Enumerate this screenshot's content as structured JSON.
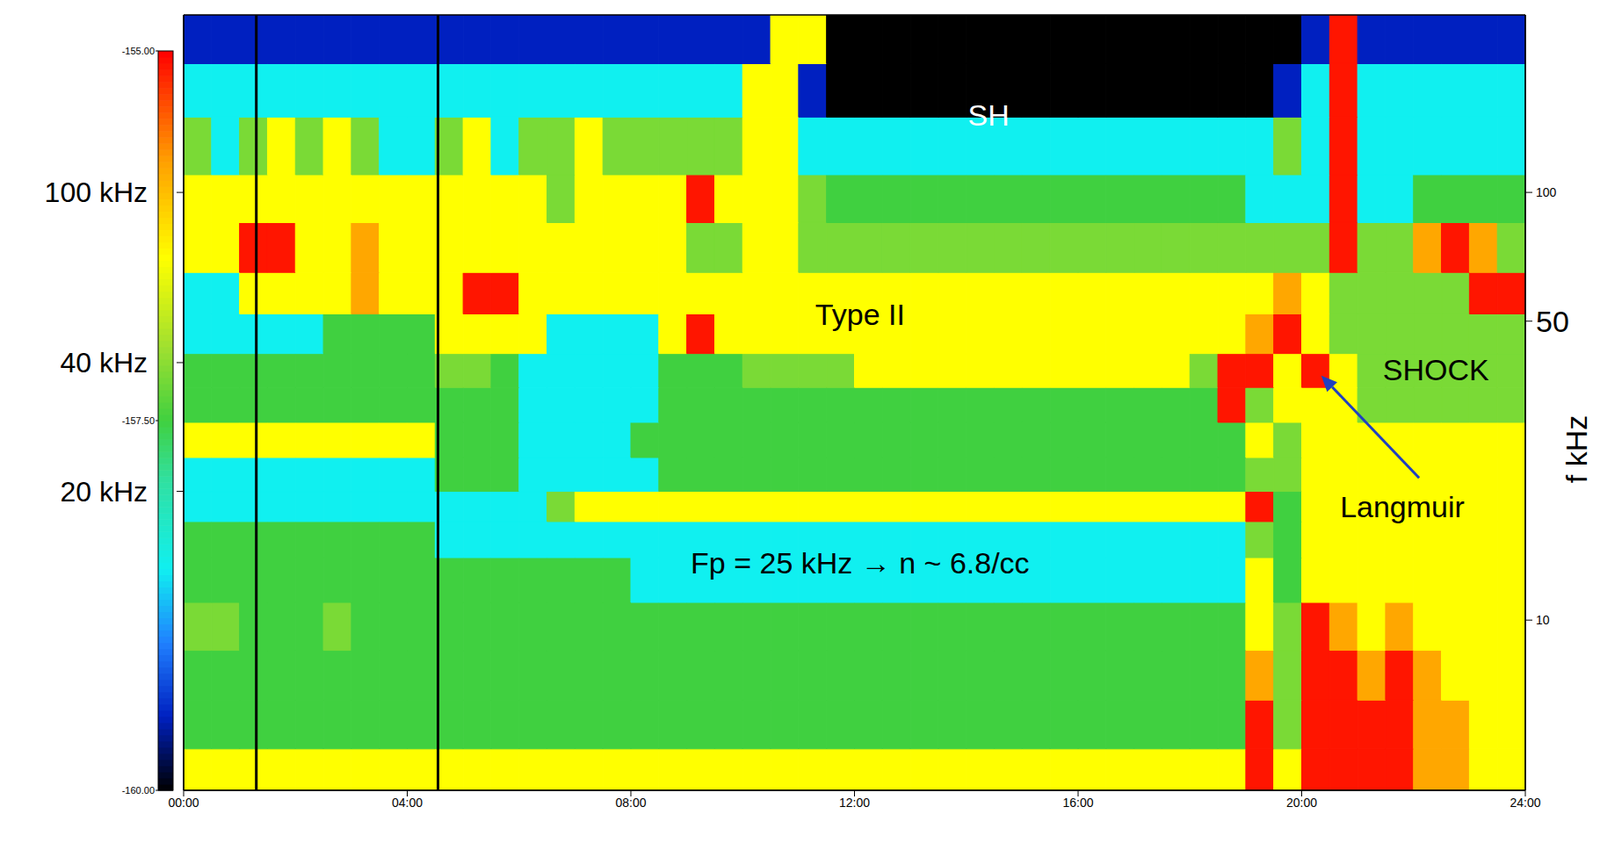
{
  "chart_data": {
    "type": "heatmap",
    "xlim": [
      0,
      24
    ],
    "xticks": [
      {
        "value": 0,
        "label": "00:00"
      },
      {
        "value": 4,
        "label": "04:00"
      },
      {
        "value": 8,
        "label": "08:00"
      },
      {
        "value": 12,
        "label": "12:00"
      },
      {
        "value": 16,
        "label": "16:00"
      },
      {
        "value": 20,
        "label": "20:00"
      },
      {
        "value": 24,
        "label": "24:00"
      }
    ],
    "ylim": [
      4,
      260
    ],
    "log": "y",
    "yticks": [
      {
        "value": 20,
        "label": "20 kHz"
      },
      {
        "value": 40,
        "label": "40 kHz"
      },
      {
        "value": 100,
        "label": "100 kHz"
      }
    ],
    "y2lim": [
      4,
      260
    ],
    "y2ticks": [
      10,
      50,
      100
    ],
    "y2_label": "f kHz",
    "t_edges": [
      0,
      0.5,
      1,
      1.5,
      2,
      2.5,
      3,
      3.5,
      4,
      4.5,
      5,
      5.5,
      6,
      6.5,
      7,
      7.5,
      8,
      8.5,
      9,
      9.5,
      10,
      10.5,
      11,
      11.5,
      12,
      12.5,
      13,
      13.5,
      14,
      14.5,
      15,
      15.5,
      16,
      16.5,
      17,
      17.5,
      18,
      18.5,
      19,
      19.5,
      20,
      20.5,
      21,
      21.5,
      22,
      22.5,
      23,
      23.5,
      24
    ],
    "f_edges": [
      4,
      5,
      6.5,
      8.5,
      11,
      14,
      17,
      20,
      24,
      29,
      35,
      42,
      52,
      65,
      85,
      110,
      150,
      200,
      260
    ],
    "cells": [
      [
        -156.4,
        -156.4,
        -156.4,
        -156.4,
        -156.4,
        -156.4,
        -156.4,
        -156.4,
        -156.4,
        -156.4,
        -156.4,
        -156.4,
        -156.4,
        -156.4,
        -156.4,
        -156.4,
        -156.4,
        -156.4,
        -156.4,
        -156.4,
        -156.4,
        -156.4,
        -156.4,
        -156.4,
        -156.4,
        -156.4,
        -156.4,
        -156.4,
        -156.4,
        -156.4,
        -156.4,
        -156.4,
        -156.4,
        -156.4,
        -156.4,
        -156.4,
        -156.4,
        -156.4,
        -155.1,
        -156.4,
        -155.1,
        -155.1,
        -155.1,
        -155.1,
        -155.8,
        -155.8,
        -156.4,
        -156.4
      ],
      [
        -157.5,
        -157.5,
        -157.5,
        -157.5,
        -157.5,
        -157.5,
        -157.5,
        -157.5,
        -157.5,
        -157.5,
        -157.5,
        -157.5,
        -157.5,
        -157.5,
        -157.5,
        -157.5,
        -157.5,
        -157.5,
        -157.5,
        -157.5,
        -157.5,
        -157.5,
        -157.5,
        -157.5,
        -157.5,
        -157.5,
        -157.5,
        -157.5,
        -157.5,
        -157.5,
        -157.5,
        -157.5,
        -157.5,
        -157.5,
        -157.5,
        -157.5,
        -157.5,
        -157.5,
        -155.1,
        -157.2,
        -155.1,
        -155.1,
        -155.1,
        -155.1,
        -155.8,
        -155.8,
        -156.4,
        -156.4
      ],
      [
        -157.5,
        -157.5,
        -157.5,
        -157.5,
        -157.5,
        -157.5,
        -157.5,
        -157.5,
        -157.5,
        -157.5,
        -157.5,
        -157.5,
        -157.5,
        -157.5,
        -157.5,
        -157.5,
        -157.5,
        -157.5,
        -157.5,
        -157.5,
        -157.5,
        -157.5,
        -157.5,
        -157.5,
        -157.5,
        -157.5,
        -157.5,
        -157.5,
        -157.5,
        -157.5,
        -157.5,
        -157.5,
        -157.5,
        -157.5,
        -157.5,
        -157.5,
        -157.5,
        -157.5,
        -155.8,
        -157.2,
        -155.1,
        -155.1,
        -155.8,
        -155.1,
        -155.8,
        -156.4,
        -156.4,
        -156.4
      ],
      [
        -157.2,
        -157.2,
        -157.5,
        -157.5,
        -157.5,
        -157.2,
        -157.5,
        -157.5,
        -157.5,
        -157.5,
        -157.5,
        -157.5,
        -157.5,
        -157.5,
        -157.5,
        -157.5,
        -157.5,
        -157.5,
        -157.5,
        -157.5,
        -157.5,
        -157.5,
        -157.5,
        -157.5,
        -157.5,
        -157.5,
        -157.5,
        -157.5,
        -157.5,
        -157.5,
        -157.5,
        -157.5,
        -157.5,
        -157.5,
        -157.5,
        -157.5,
        -157.5,
        -157.5,
        -156.4,
        -157.2,
        -155.1,
        -155.8,
        -156.4,
        -155.8,
        -156.4,
        -156.4,
        -156.4,
        -156.4
      ],
      [
        -157.5,
        -157.5,
        -157.5,
        -157.5,
        -157.5,
        -157.5,
        -157.5,
        -157.5,
        -157.5,
        -157.5,
        -157.5,
        -157.5,
        -157.5,
        -157.5,
        -157.5,
        -157.5,
        -158.5,
        -158.5,
        -158.5,
        -158.5,
        -158.5,
        -158.5,
        -158.5,
        -158.5,
        -158.5,
        -158.5,
        -158.5,
        -158.5,
        -158.5,
        -158.5,
        -158.5,
        -158.5,
        -158.5,
        -158.5,
        -158.5,
        -158.5,
        -158.5,
        -158.5,
        -156.4,
        -157.5,
        -156.4,
        -156.4,
        -156.4,
        -156.4,
        -156.4,
        -156.4,
        -156.4,
        -156.4
      ],
      [
        -157.5,
        -157.5,
        -157.5,
        -157.5,
        -157.5,
        -157.5,
        -157.5,
        -157.5,
        -157.5,
        -158.5,
        -158.5,
        -158.5,
        -158.5,
        -158.5,
        -158.5,
        -158.5,
        -158.5,
        -158.5,
        -158.5,
        -158.5,
        -158.5,
        -158.5,
        -158.5,
        -158.5,
        -158.5,
        -158.5,
        -158.5,
        -158.5,
        -158.5,
        -158.5,
        -158.5,
        -158.5,
        -158.5,
        -158.5,
        -158.5,
        -158.5,
        -158.5,
        -158.5,
        -157.2,
        -157.5,
        -156.4,
        -156.4,
        -156.4,
        -156.4,
        -156.4,
        -156.4,
        -156.4,
        -156.4
      ],
      [
        -158.5,
        -158.5,
        -158.5,
        -158.5,
        -158.5,
        -158.5,
        -158.5,
        -158.5,
        -158.5,
        -158.5,
        -158.5,
        -158.5,
        -158.5,
        -157.2,
        -156.4,
        -156.4,
        -156.4,
        -156.4,
        -156.4,
        -156.4,
        -156.4,
        -156.4,
        -156.4,
        -156.4,
        -156.4,
        -156.4,
        -156.4,
        -156.4,
        -156.4,
        -156.4,
        -156.4,
        -156.4,
        -156.4,
        -156.4,
        -156.4,
        -156.4,
        -156.4,
        -156.4,
        -155.1,
        -157.5,
        -156.4,
        -156.4,
        -156.4,
        -156.4,
        -156.4,
        -156.4,
        -156.4,
        -156.4
      ],
      [
        -158.5,
        -158.5,
        -158.5,
        -158.5,
        -158.5,
        -158.5,
        -158.5,
        -158.5,
        -158.5,
        -157.5,
        -157.5,
        -157.5,
        -158.5,
        -158.5,
        -158.5,
        -158.5,
        -158.5,
        -157.5,
        -157.5,
        -157.5,
        -157.5,
        -157.5,
        -157.5,
        -157.5,
        -157.5,
        -157.5,
        -157.5,
        -157.5,
        -157.5,
        -157.5,
        -157.5,
        -157.5,
        -157.5,
        -157.5,
        -157.5,
        -157.5,
        -157.5,
        -157.5,
        -157.2,
        -157.2,
        -156.4,
        -156.4,
        -156.4,
        -156.4,
        -156.4,
        -156.4,
        -156.4,
        -156.4
      ],
      [
        -156.4,
        -156.4,
        -156.4,
        -156.4,
        -156.4,
        -156.4,
        -156.4,
        -156.4,
        -156.4,
        -157.5,
        -157.5,
        -157.5,
        -158.5,
        -158.5,
        -158.5,
        -158.5,
        -157.5,
        -157.5,
        -157.5,
        -157.5,
        -157.5,
        -157.5,
        -157.5,
        -157.5,
        -157.5,
        -157.5,
        -157.5,
        -157.5,
        -157.5,
        -157.5,
        -157.5,
        -157.5,
        -157.5,
        -157.5,
        -157.5,
        -157.5,
        -157.5,
        -157.5,
        -156.4,
        -157.2,
        -156.4,
        -156.4,
        -156.4,
        -156.4,
        -156.4,
        -156.4,
        -156.4,
        -156.4
      ],
      [
        -157.5,
        -157.5,
        -157.5,
        -157.5,
        -157.5,
        -157.5,
        -157.5,
        -157.5,
        -157.5,
        -157.5,
        -157.5,
        -157.5,
        -158.5,
        -158.5,
        -158.5,
        -158.5,
        -158.5,
        -157.5,
        -157.5,
        -157.5,
        -157.5,
        -157.5,
        -157.5,
        -157.5,
        -157.5,
        -157.5,
        -157.5,
        -157.5,
        -157.5,
        -157.5,
        -157.5,
        -157.5,
        -157.5,
        -157.5,
        -157.5,
        -157.5,
        -157.5,
        -155.1,
        -157.2,
        -156.4,
        -156.4,
        -156.4,
        -157.2,
        -157.2,
        -157.2,
        -157.2,
        -157.2,
        -157.2
      ],
      [
        -157.5,
        -157.5,
        -157.5,
        -157.5,
        -157.5,
        -157.5,
        -157.5,
        -157.5,
        -157.5,
        -157.2,
        -157.2,
        -157.5,
        -158.5,
        -158.5,
        -158.5,
        -158.5,
        -158.5,
        -157.5,
        -157.5,
        -157.5,
        -157.2,
        -157.2,
        -157.2,
        -157.2,
        -156.4,
        -156.4,
        -156.4,
        -156.4,
        -156.4,
        -156.4,
        -156.4,
        -156.4,
        -156.4,
        -156.4,
        -156.4,
        -156.4,
        -157.2,
        -155.1,
        -155.1,
        -156.4,
        -155.1,
        -156.4,
        -157.2,
        -157.2,
        -157.2,
        -157.2,
        -157.2,
        -157.2
      ],
      [
        -158.5,
        -158.5,
        -158.5,
        -158.5,
        -158.5,
        -157.5,
        -157.5,
        -157.5,
        -157.5,
        -156.4,
        -156.4,
        -156.4,
        -156.4,
        -158.5,
        -158.5,
        -158.5,
        -158.5,
        -156.4,
        -155.1,
        -156.4,
        -156.4,
        -156.4,
        -156.4,
        -156.4,
        -156.4,
        -156.4,
        -156.4,
        -156.4,
        -156.4,
        -156.4,
        -156.4,
        -156.4,
        -156.4,
        -156.4,
        -156.4,
        -156.4,
        -156.4,
        -156.4,
        -155.8,
        -155.1,
        -156.4,
        -157.2,
        -157.2,
        -157.2,
        -157.2,
        -157.2,
        -157.2,
        -157.2
      ],
      [
        -158.5,
        -158.5,
        -156.4,
        -156.4,
        -156.4,
        -156.4,
        -155.8,
        -156.4,
        -156.4,
        -156.4,
        -155.1,
        -155.1,
        -156.4,
        -156.4,
        -156.4,
        -156.4,
        -156.4,
        -156.4,
        -156.4,
        -156.4,
        -156.4,
        -156.4,
        -156.4,
        -156.4,
        -156.4,
        -156.4,
        -156.4,
        -156.4,
        -156.4,
        -156.4,
        -156.4,
        -156.4,
        -156.4,
        -156.4,
        -156.4,
        -156.4,
        -156.4,
        -156.4,
        -156.4,
        -155.8,
        -156.4,
        -157.2,
        -157.2,
        -157.2,
        -157.2,
        -157.2,
        -155.1,
        -155.1
      ],
      [
        -156.4,
        -156.4,
        -155.1,
        -155.1,
        -156.4,
        -156.4,
        -155.8,
        -156.4,
        -156.4,
        -156.4,
        -156.4,
        -156.4,
        -156.4,
        -156.4,
        -156.4,
        -156.4,
        -156.4,
        -156.4,
        -157.2,
        -157.2,
        -156.4,
        -156.4,
        -157.2,
        -157.2,
        -157.2,
        -157.2,
        -157.2,
        -157.2,
        -157.2,
        -157.2,
        -157.2,
        -157.2,
        -157.2,
        -157.2,
        -157.2,
        -157.2,
        -157.2,
        -157.2,
        -157.2,
        -157.2,
        -157.2,
        -155.1,
        -157.2,
        -157.2,
        -155.8,
        -155.1,
        -155.8,
        -157.2
      ],
      [
        -156.4,
        -156.4,
        -156.4,
        -156.4,
        -156.4,
        -156.4,
        -156.4,
        -156.4,
        -156.4,
        -156.4,
        -156.4,
        -156.4,
        -156.4,
        -157.2,
        -156.4,
        -156.4,
        -156.4,
        -156.4,
        -155.1,
        -156.4,
        -156.4,
        -156.4,
        -157.2,
        -157.5,
        -157.5,
        -157.5,
        -157.5,
        -157.5,
        -157.5,
        -157.5,
        -157.5,
        -157.5,
        -157.5,
        -157.5,
        -157.5,
        -157.5,
        -157.5,
        -157.5,
        -158.5,
        -158.5,
        -158.5,
        -155.1,
        -158.5,
        -158.5,
        -157.5,
        -157.5,
        -157.5,
        -157.5
      ],
      [
        -157.2,
        -158.5,
        -157.2,
        -156.4,
        -157.2,
        -156.4,
        -157.2,
        -158.5,
        -158.5,
        -157.2,
        -156.4,
        -158.5,
        -157.2,
        -157.2,
        -156.4,
        -157.2,
        -157.2,
        -157.2,
        -157.2,
        -157.2,
        -156.4,
        -156.4,
        -158.5,
        -158.5,
        -158.5,
        -158.5,
        -158.5,
        -158.5,
        -158.5,
        -158.5,
        -158.5,
        -158.5,
        -158.5,
        -158.5,
        -158.5,
        -158.5,
        -158.5,
        -158.5,
        -158.5,
        -157.2,
        -158.5,
        -155.1,
        -158.5,
        -158.5,
        -158.5,
        -158.5,
        -158.5,
        -158.5
      ],
      [
        -158.5,
        -158.5,
        -158.5,
        -158.5,
        -158.5,
        -158.5,
        -158.5,
        -158.5,
        -158.5,
        -158.5,
        -158.5,
        -158.5,
        -158.5,
        -158.5,
        -158.5,
        -158.5,
        -158.5,
        -158.5,
        -158.5,
        -158.5,
        -156.4,
        -156.4,
        -159.5,
        -160,
        -160,
        -160,
        -160,
        -160,
        -160,
        -160,
        -160,
        -160,
        -160,
        -160,
        -160,
        -160,
        -160,
        -160,
        -160,
        -159.5,
        -158.5,
        -155.1,
        -158.5,
        -158.5,
        -158.5,
        -158.5,
        -158.5,
        -158.5
      ],
      [
        -159.5,
        -159.5,
        -159.5,
        -159.5,
        -159.5,
        -159.5,
        -159.5,
        -159.5,
        -159.5,
        -159.5,
        -159.5,
        -159.5,
        -159.5,
        -159.5,
        -159.5,
        -159.5,
        -159.5,
        -159.5,
        -159.5,
        -159.5,
        -159.5,
        -156.4,
        -156.4,
        -160,
        -160,
        -160,
        -160,
        -160,
        -160,
        -160,
        -160,
        -160,
        -160,
        -160,
        -160,
        -160,
        -160,
        -160,
        -160,
        -160,
        -159.5,
        -155.1,
        -159.5,
        -159.5,
        -159.5,
        -159.5,
        -159.5,
        -159.5
      ]
    ],
    "colorbar": {
      "range": [
        -160,
        -155
      ],
      "ticks": [
        {
          "value": -160,
          "label": "-160.00"
        },
        {
          "value": -157.5,
          "label": "-157.50"
        },
        {
          "value": -155,
          "label": "-155.00"
        }
      ]
    },
    "vertical_lines": [
      1.3,
      4.55
    ],
    "annotations": [
      {
        "text": "SH",
        "x": 14.4,
        "y": 152,
        "color": "#ffffff"
      },
      {
        "text": "Type II",
        "x": 12.1,
        "y": 52,
        "color": "#000000"
      },
      {
        "text": "SHOCK",
        "x": 22.4,
        "y": 38.5,
        "color": "#000000"
      },
      {
        "text": "Langmuir",
        "x": 21.8,
        "y": 18.4,
        "color": "#000000"
      },
      {
        "text": "Fp = 25 kHz → n ~ 6.8/cc",
        "x": 12.1,
        "y": 13.6,
        "color": "#000000"
      }
    ],
    "arrow": {
      "from": [
        22.1,
        21.5
      ],
      "to": [
        20.35,
        37.3
      ],
      "color": "#2040c0"
    }
  }
}
